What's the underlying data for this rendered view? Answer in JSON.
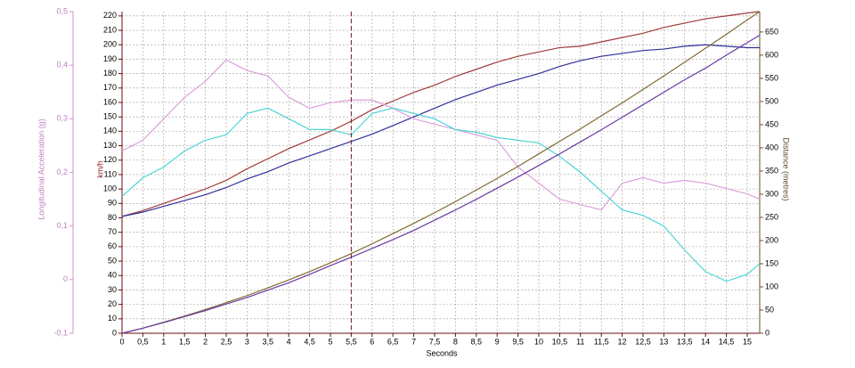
{
  "chart_data": {
    "type": "line",
    "x_label": "Seconds",
    "y_label": "km/h",
    "y2_label": "Distance (metres)",
    "y3_label": "Longitudinal Acceleration (g)",
    "x": [
      0,
      0.5,
      1,
      1.5,
      2,
      2.5,
      3,
      3.5,
      4,
      4.5,
      5,
      5.5,
      6,
      6.5,
      7,
      7.5,
      8,
      8.5,
      9,
      9.5,
      10,
      10.5,
      11,
      11.5,
      12,
      12.5,
      13,
      13.5,
      14,
      14.5,
      15,
      15.3
    ],
    "xlim": [
      0,
      15.3
    ],
    "xticks": [
      0,
      {
        "value": 0.5,
        "label": "0,5"
      },
      1,
      {
        "value": 1.5,
        "label": "1,5"
      },
      2,
      {
        "value": 2.5,
        "label": "2,5"
      },
      3,
      {
        "value": 3.5,
        "label": "3,5"
      },
      4,
      {
        "value": 4.5,
        "label": "4,5"
      },
      5,
      {
        "value": 5.5,
        "label": "5,5"
      },
      6,
      {
        "value": 6.5,
        "label": "6,5"
      },
      7,
      {
        "value": 7.5,
        "label": "7,5"
      },
      8,
      {
        "value": 8.5,
        "label": "8,5"
      },
      9,
      {
        "value": 9.5,
        "label": "9,5"
      },
      10,
      {
        "value": 10.5,
        "label": "10,5"
      },
      11,
      {
        "value": 11.5,
        "label": "11,5"
      },
      12,
      {
        "value": 12.5,
        "label": "12,5"
      },
      13,
      {
        "value": 13.5,
        "label": "13,5"
      },
      14,
      {
        "value": 14.5,
        "label": "14,5"
      },
      15
    ],
    "ylim": [
      0,
      223
    ],
    "yticks": [
      0,
      10,
      20,
      30,
      40,
      50,
      60,
      70,
      80,
      90,
      100,
      110,
      120,
      130,
      140,
      150,
      160,
      170,
      180,
      190,
      200,
      210,
      220
    ],
    "y2lim": [
      0,
      694
    ],
    "y2ticks": [
      0,
      50,
      100,
      150,
      200,
      250,
      300,
      350,
      400,
      450,
      500,
      550,
      600,
      650
    ],
    "y3lim": [
      -0.1,
      0.5
    ],
    "y3ticks": [
      {
        "value": -0.1,
        "label": "-0,1"
      },
      0,
      {
        "value": 0.1,
        "label": "0,1"
      },
      {
        "value": 0.2,
        "label": "0,2"
      },
      {
        "value": 0.3,
        "label": "0,3"
      },
      {
        "value": 0.4,
        "label": "0,4"
      },
      {
        "value": 0.5,
        "label": "0,5"
      }
    ],
    "grid": true,
    "cursor": 5.5,
    "series": [
      {
        "color": "#a03a3a",
        "axis": "y",
        "values": [
          81,
          85,
          90,
          95,
          100,
          106,
          114,
          121,
          128,
          134,
          140,
          147,
          155,
          161,
          167,
          172,
          178,
          183,
          188,
          192,
          195,
          198,
          199,
          202,
          205,
          208,
          212,
          215,
          218,
          220,
          222,
          223
        ]
      },
      {
        "color": "#30309a",
        "axis": "y",
        "values": [
          81,
          84,
          88,
          92,
          96,
          101,
          107,
          112,
          118,
          123,
          128,
          133,
          138,
          144,
          150,
          156,
          162,
          167,
          172,
          176,
          180,
          185,
          189,
          192,
          194,
          196,
          197,
          199,
          200,
          199,
          198,
          198
        ]
      },
      {
        "color": "#dca0dc",
        "axis": "y3",
        "values": [
          0.24,
          0.26,
          0.3,
          0.34,
          0.37,
          0.41,
          0.39,
          0.38,
          0.34,
          0.32,
          0.33,
          0.335,
          0.335,
          0.32,
          0.3,
          0.29,
          0.28,
          0.27,
          0.26,
          0.21,
          0.18,
          0.15,
          0.14,
          0.13,
          0.18,
          0.19,
          0.18,
          0.185,
          0.18,
          0.17,
          0.16,
          0.15
        ]
      },
      {
        "color": "#4ed4d4",
        "axis": "y3",
        "values": [
          0.155,
          0.19,
          0.21,
          0.24,
          0.26,
          0.27,
          0.31,
          0.32,
          0.3,
          0.28,
          0.28,
          0.27,
          0.31,
          0.32,
          0.31,
          0.3,
          0.28,
          0.275,
          0.265,
          0.26,
          0.255,
          0.23,
          0.2,
          0.165,
          0.13,
          0.12,
          0.1,
          0.055,
          0.015,
          -0.003,
          0.01,
          0.03
        ]
      },
      {
        "color": "#806a30",
        "axis": "y2",
        "values": [
          0,
          11,
          24,
          37,
          51,
          66,
          81,
          98,
          115,
          133,
          152,
          172,
          193,
          215,
          237,
          260,
          284,
          309,
          334,
          360,
          387,
          414,
          441,
          469,
          497,
          526,
          555,
          585,
          615,
          645,
          676,
          694
        ]
      },
      {
        "color": "#6a3aa6",
        "axis": "y2",
        "values": [
          0,
          11,
          23,
          36,
          49,
          63,
          77,
          93,
          109,
          127,
          146,
          164,
          183,
          202,
          222,
          244,
          266,
          289,
          313,
          337,
          362,
          387,
          413,
          439,
          466,
          493,
          520,
          547,
          572,
          600,
          627,
          643
        ]
      }
    ]
  }
}
